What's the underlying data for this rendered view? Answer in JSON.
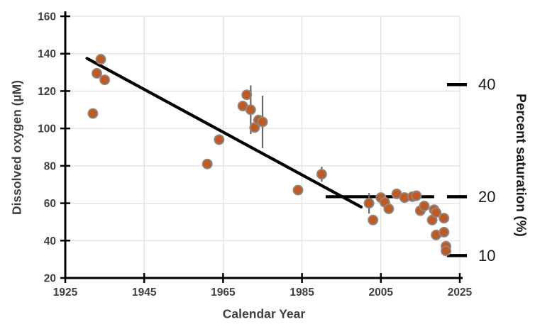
{
  "chart_data": {
    "type": "scatter",
    "title": "",
    "xlabel": "Calendar Year",
    "ylabel": "Dissolved oxygen (µM)",
    "y2label": "Percent saturation (%)",
    "xlim": [
      1925,
      2025
    ],
    "ylim": [
      20,
      160
    ],
    "x_ticks": [
      1925,
      1945,
      1965,
      1985,
      2005,
      2025
    ],
    "y_ticks": [
      20,
      40,
      60,
      80,
      100,
      120,
      140,
      160
    ],
    "grid": true,
    "legend": "none",
    "colors": {
      "point_fill": "#c05a24",
      "point_border": "#8a8a8a",
      "error_bar": "#666666",
      "line": "#000000",
      "gridline": "#d9d9d9",
      "axis": "#000000",
      "tick_label": "#3f3f3f",
      "right_label": "#1a1a1a"
    },
    "points": [
      {
        "year": 1932,
        "do": 108
      },
      {
        "year": 1933,
        "do": 129.5
      },
      {
        "year": 1934,
        "do": 137
      },
      {
        "year": 1935,
        "do": 126
      },
      {
        "year": 1961,
        "do": 81
      },
      {
        "year": 1964,
        "do": 94
      },
      {
        "year": 1970,
        "do": 112
      },
      {
        "year": 1971,
        "do": 118
      },
      {
        "year": 1972,
        "do": 110,
        "err": 13
      },
      {
        "year": 1973,
        "do": 100.5
      },
      {
        "year": 1974,
        "do": 104.5
      },
      {
        "year": 1975,
        "do": 103.5,
        "err": 14
      },
      {
        "year": 1984,
        "do": 67
      },
      {
        "year": 1990,
        "do": 75.5,
        "err": 4
      },
      {
        "year": 2002,
        "do": 60,
        "err": 5.5
      },
      {
        "year": 2003,
        "do": 51
      },
      {
        "year": 2005,
        "do": 63
      },
      {
        "year": 2006,
        "do": 60.5
      },
      {
        "year": 2007,
        "do": 57
      },
      {
        "year": 2009,
        "do": 65
      },
      {
        "year": 2011,
        "do": 63
      },
      {
        "year": 2013,
        "do": 63.5
      },
      {
        "year": 2014,
        "do": 64
      },
      {
        "year": 2015,
        "do": 56
      },
      {
        "year": 2016,
        "do": 58.5
      },
      {
        "year": 2018,
        "do": 51
      },
      {
        "year": 2018.5,
        "do": 56.5
      },
      {
        "year": 2019,
        "do": 55
      },
      {
        "year": 2019,
        "do": 43
      },
      {
        "year": 2021,
        "do": 52
      },
      {
        "year": 2021,
        "do": 44.5
      },
      {
        "year": 2021.5,
        "do": 37
      },
      {
        "year": 2021.5,
        "do": 34.5
      }
    ],
    "trend_line": {
      "x1": 1930.5,
      "y1": 137.5,
      "x2": 2000,
      "y2": 58
    },
    "reference_line": {
      "x1": 1991,
      "x2": 2018.5,
      "y": 63.5
    },
    "right_axis_marks": [
      {
        "label": "40",
        "do_value": 123.5
      },
      {
        "label": "20",
        "do_value": 63.5
      },
      {
        "label": "10",
        "do_value": 32
      }
    ]
  }
}
